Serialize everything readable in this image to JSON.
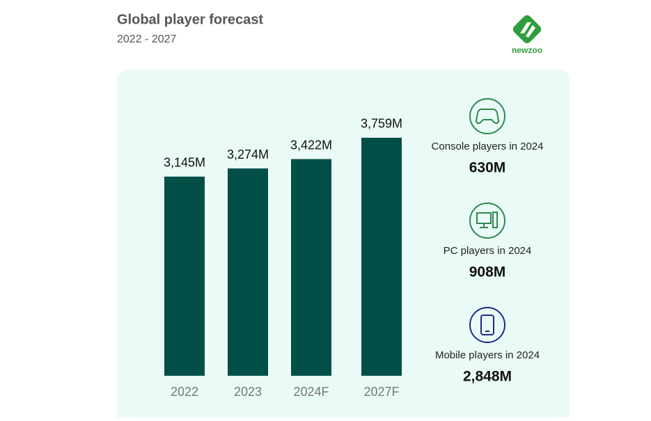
{
  "chart_data": {
    "type": "bar",
    "title": "Global player forecast",
    "subtitle": "2022 - 2027",
    "categories": [
      "2022",
      "2023",
      "2024F",
      "2027F"
    ],
    "values": [
      3145,
      3274,
      3422,
      3759
    ],
    "value_labels": [
      "3,145M",
      "3,274M",
      "3,422M",
      "3,759M"
    ],
    "color": "#024f47"
  },
  "logo": {
    "text": "newzoo"
  },
  "stats": [
    {
      "label": "Console players in 2024",
      "value": "630M"
    },
    {
      "label": "PC players in 2024",
      "value": "908M"
    },
    {
      "label": "Mobile players in 2024",
      "value": "2,848M"
    }
  ]
}
